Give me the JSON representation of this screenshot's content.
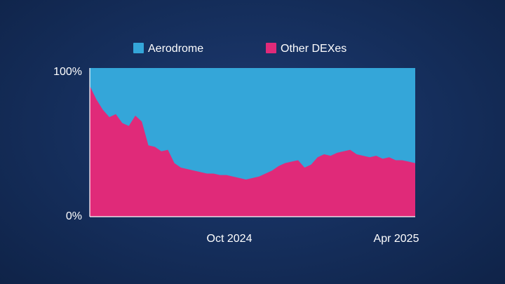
{
  "chart_data": {
    "type": "area",
    "stacked": true,
    "normalized": true,
    "title": "",
    "xlabel": "",
    "ylabel": "",
    "ylim": [
      0,
      100
    ],
    "y_ticks": [
      "100%",
      "0%"
    ],
    "x_ticks": [
      "Oct 2024",
      "Apr 2025"
    ],
    "legend_position": "top",
    "series": [
      {
        "name": "Aerodrome",
        "color": "#34a6d9",
        "note": "complement of Other DEXes (fills to 100%)"
      },
      {
        "name": "Other DEXes",
        "color": "#e02a79",
        "x": [
          "2024-05-15",
          "2024-05-22",
          "2024-05-29",
          "2024-06-05",
          "2024-06-12",
          "2024-06-19",
          "2024-06-26",
          "2024-07-03",
          "2024-07-10",
          "2024-07-17",
          "2024-07-24",
          "2024-07-31",
          "2024-08-07",
          "2024-08-14",
          "2024-08-21",
          "2024-08-28",
          "2024-09-04",
          "2024-09-11",
          "2024-09-18",
          "2024-09-25",
          "2024-10-02",
          "2024-10-09",
          "2024-10-16",
          "2024-10-23",
          "2024-10-30",
          "2024-11-06",
          "2024-11-13",
          "2024-11-20",
          "2024-11-27",
          "2024-12-04",
          "2024-12-11",
          "2024-12-18",
          "2024-12-25",
          "2025-01-01",
          "2025-01-08",
          "2025-01-15",
          "2025-01-22",
          "2025-01-29",
          "2025-02-05",
          "2025-02-12",
          "2025-02-19",
          "2025-02-26",
          "2025-03-05",
          "2025-03-12",
          "2025-03-19",
          "2025-03-26",
          "2025-04-02",
          "2025-04-09",
          "2025-04-16",
          "2025-04-23",
          "2025-04-30"
        ],
        "values": [
          88,
          79,
          72,
          67,
          69,
          63,
          61,
          68,
          64,
          48,
          47,
          44,
          45,
          36,
          33,
          32,
          31,
          30,
          29,
          29,
          28,
          28,
          27,
          26,
          25,
          26,
          27,
          29,
          31,
          34,
          36,
          37,
          38,
          33,
          35,
          40,
          42,
          41,
          43,
          44,
          45,
          42,
          41,
          40,
          41,
          39,
          40,
          38,
          38,
          37,
          36
        ]
      }
    ]
  }
}
